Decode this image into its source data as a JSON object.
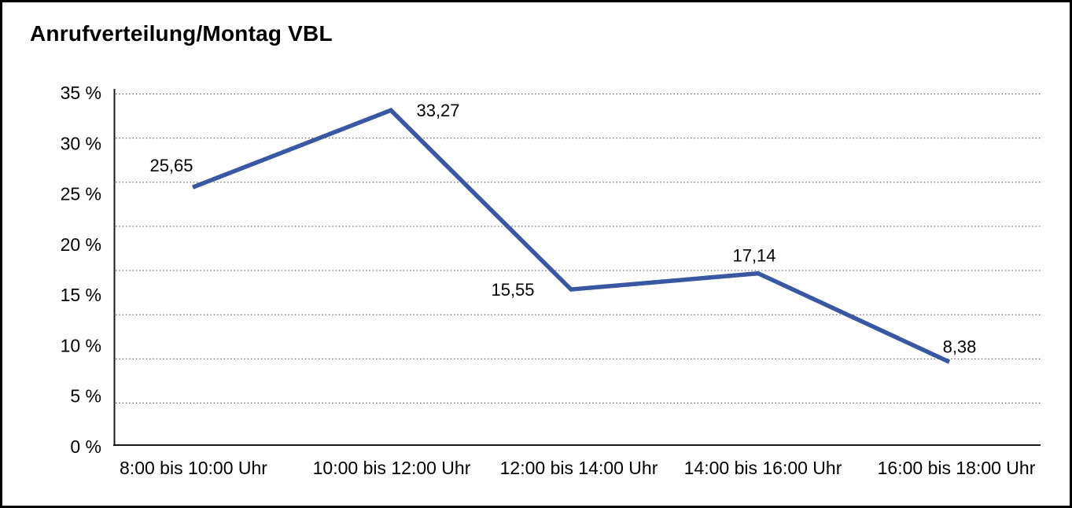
{
  "title": "Anrufverteilung/Montag VBL",
  "chart_data": {
    "type": "line",
    "title": "Anrufverteilung/Montag VBL",
    "categories": [
      "8:00 bis 10:00 Uhr",
      "10:00 bis 12:00 Uhr",
      "12:00 bis 14:00 Uhr",
      "14:00 bis 16:00 Uhr",
      "16:00 bis 18:00 Uhr"
    ],
    "series": [
      {
        "values": [
          25.65,
          33.27,
          15.55,
          17.14,
          8.38
        ],
        "labels": [
          "25,65",
          "33,27",
          "15,55",
          "17,14",
          "8,38"
        ]
      }
    ],
    "ylim": [
      0,
      35
    ],
    "y_ticks": [
      35,
      30,
      25,
      20,
      15,
      10,
      5,
      0
    ],
    "y_tick_labels": [
      "35 %",
      "30 %",
      "25 %",
      "20 %",
      "15 %",
      "10 %",
      "5 %",
      "0 %"
    ],
    "xlabel": "",
    "ylabel": "",
    "grid": "horizontal-dotted",
    "legend": "none",
    "marker": "none",
    "line_color": "#3A57A2",
    "text_color": "#000000",
    "background_color": "#FFFFFF"
  }
}
